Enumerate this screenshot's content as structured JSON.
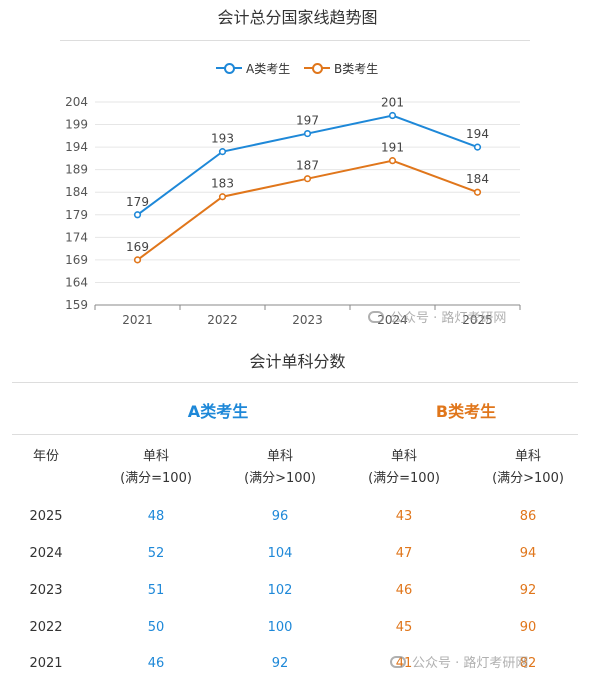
{
  "chart_title": "会计总分国家线趋势图",
  "legend": {
    "a_label": "A类考生",
    "b_label": "B类考生"
  },
  "colors": {
    "a": "#1e88d8",
    "b": "#e0761b",
    "grid": "#e6e6e6"
  },
  "chart_data": {
    "type": "line",
    "title": "会计总分国家线趋势图",
    "x": [
      "2021",
      "2022",
      "2023",
      "2024",
      "2025"
    ],
    "series": [
      {
        "name": "A类考生",
        "values": [
          179,
          193,
          197,
          201,
          194
        ]
      },
      {
        "name": "B类考生",
        "values": [
          169,
          183,
          187,
          191,
          184
        ]
      }
    ],
    "ylim": [
      159,
      204
    ],
    "yticks": [
      204,
      199,
      194,
      189,
      184,
      179,
      174,
      169,
      164,
      159
    ],
    "grid": true,
    "legend_position": "top-center",
    "xlabel": "",
    "ylabel": ""
  },
  "watermark": "公众号 · 路灯考研网",
  "table": {
    "title": "会计单科分数",
    "group_a": "A类考生",
    "group_b": "B类考生",
    "year_header": "年份",
    "col_headers": [
      {
        "line1": "单科",
        "line2": "(满分=100)"
      },
      {
        "line1": "单科",
        "line2": "(满分>100)"
      },
      {
        "line1": "单科",
        "line2": "(满分=100)"
      },
      {
        "line1": "单科",
        "line2": "(满分>100)"
      }
    ],
    "rows": [
      {
        "year": "2025",
        "a1": "48",
        "a2": "96",
        "b1": "43",
        "b2": "86"
      },
      {
        "year": "2024",
        "a1": "52",
        "a2": "104",
        "b1": "47",
        "b2": "94"
      },
      {
        "year": "2023",
        "a1": "51",
        "a2": "102",
        "b1": "46",
        "b2": "92"
      },
      {
        "year": "2022",
        "a1": "50",
        "a2": "100",
        "b1": "45",
        "b2": "90"
      },
      {
        "year": "2021",
        "a1": "46",
        "a2": "92",
        "b1": "41",
        "b2": "82"
      }
    ]
  }
}
